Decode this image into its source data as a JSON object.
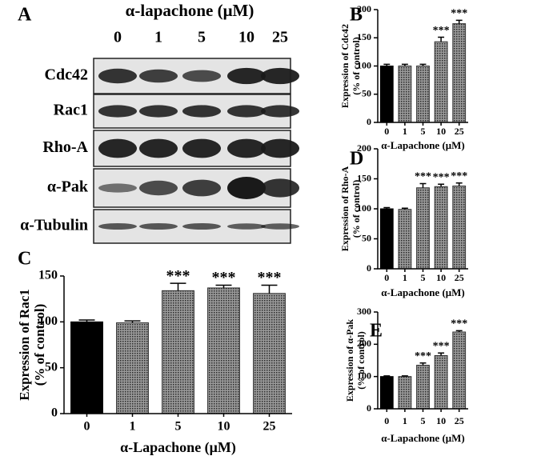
{
  "blot": {
    "panel": "A",
    "title": "α-lapachone (μM)",
    "lanes": [
      "0",
      "1",
      "5",
      "10",
      "25"
    ],
    "rows": [
      "Cdc42",
      "Rac1",
      "Rho-A",
      "α-Pak",
      "α-Tubulin"
    ]
  },
  "chart_data": [
    {
      "type": "bar",
      "panel": "B",
      "ylabel": [
        "Expression of Cdc42",
        "(% of control)"
      ],
      "xlabel": "α-Lapachone (μM)",
      "categories": [
        "0",
        "1",
        "5",
        "10",
        "25"
      ],
      "values": [
        100,
        100,
        100,
        143,
        175
      ],
      "errors": [
        3,
        3,
        3,
        8,
        6
      ],
      "annotations": [
        null,
        null,
        null,
        "***",
        "***"
      ],
      "colors": [
        "#000000",
        "#6e6e6e",
        "#6e6e6e",
        "#6e6e6e",
        "#6e6e6e"
      ],
      "hatch": [
        false,
        true,
        true,
        true,
        true
      ],
      "ylim": [
        0,
        200
      ],
      "yticks": [
        0,
        50,
        100,
        150,
        200
      ]
    },
    {
      "type": "bar",
      "panel": "D",
      "ylabel": [
        "Expression of Rho-A",
        "(% of control)"
      ],
      "xlabel": "α-Lapachone (μM)",
      "categories": [
        "0",
        "1",
        "5",
        "10",
        "25"
      ],
      "values": [
        100,
        99,
        135,
        137,
        138
      ],
      "errors": [
        2,
        2,
        7,
        4,
        5
      ],
      "annotations": [
        null,
        null,
        "***",
        "***",
        "***"
      ],
      "colors": [
        "#000000",
        "#6e6e6e",
        "#6e6e6e",
        "#6e6e6e",
        "#6e6e6e"
      ],
      "hatch": [
        false,
        true,
        true,
        true,
        true
      ],
      "ylim": [
        0,
        200
      ],
      "yticks": [
        0,
        50,
        100,
        150,
        200
      ]
    },
    {
      "type": "bar",
      "panel": "C",
      "ylabel": [
        "Expression of Rac1",
        "(% of control)"
      ],
      "xlabel": "α-Lapachone (μM)",
      "categories": [
        "0",
        "1",
        "5",
        "10",
        "25"
      ],
      "values": [
        100,
        99,
        134,
        137,
        131
      ],
      "errors": [
        2,
        2,
        8,
        3,
        9
      ],
      "annotations": [
        null,
        null,
        "***",
        "***",
        "***"
      ],
      "colors": [
        "#000000",
        "#6e6e6e",
        "#6e6e6e",
        "#6e6e6e",
        "#6e6e6e"
      ],
      "hatch": [
        false,
        true,
        true,
        true,
        true
      ],
      "ylim": [
        0,
        150
      ],
      "yticks": [
        0,
        50,
        100,
        150
      ]
    },
    {
      "type": "bar",
      "panel": "E",
      "ylabel": [
        "Expression of α-Pak",
        "(% of control)"
      ],
      "xlabel": "α-Lapachone (μM)",
      "categories": [
        "0",
        "1",
        "5",
        "10",
        "25"
      ],
      "values": [
        100,
        100,
        135,
        165,
        238
      ],
      "errors": [
        2,
        2,
        7,
        8,
        4
      ],
      "annotations": [
        null,
        null,
        "***",
        "***",
        "***"
      ],
      "colors": [
        "#000000",
        "#6e6e6e",
        "#6e6e6e",
        "#6e6e6e",
        "#6e6e6e"
      ],
      "hatch": [
        false,
        true,
        true,
        true,
        true
      ],
      "ylim": [
        0,
        300
      ],
      "yticks": [
        0,
        100,
        200,
        300
      ]
    }
  ]
}
